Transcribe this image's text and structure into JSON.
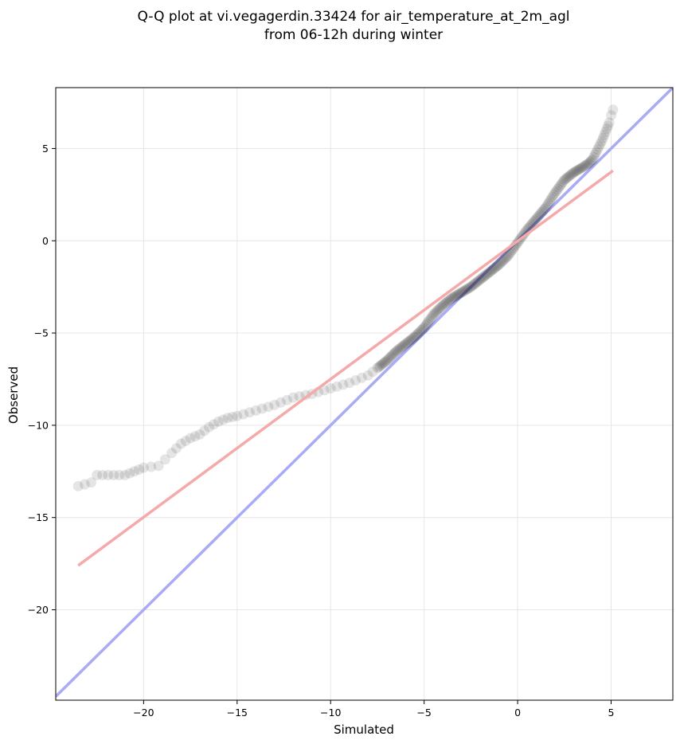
{
  "chart_data": {
    "type": "scatter",
    "title": "Q-Q plot at vi.vegagerdin.33424 for air_temperature_at_2m_agl",
    "subtitle": "from 06-12h during winter",
    "xlabel": "Simulated",
    "ylabel": "Observed",
    "xlim": [
      -24.7,
      8.3
    ],
    "ylim": [
      -24.9,
      8.3
    ],
    "x_ticks": [
      -20,
      -15,
      -10,
      -5,
      0,
      5
    ],
    "y_ticks": [
      5,
      0,
      -5,
      -10,
      -15,
      -20
    ],
    "x_tick_labels": [
      "−20",
      "−15",
      "−10",
      "−5",
      "0",
      "5"
    ],
    "y_tick_labels": [
      "5",
      "0",
      "−5",
      "−10",
      "−15",
      "−20"
    ],
    "grid": true,
    "colors": {
      "points": "#000000",
      "reference_line": "#aaaaf5",
      "fit_line": "#f5aaaa",
      "grid": "#e6e6e6"
    },
    "quantile_curve": {
      "x": [
        -23.5,
        -22.8,
        -22.5,
        -21.0,
        -20.5,
        -20.0,
        -19.2,
        -18.5,
        -18.0,
        -17.5,
        -17.0,
        -16.5,
        -16.0,
        -15.5,
        -15.0,
        -14.0,
        -13.0,
        -12.0,
        -11.0,
        -10.0,
        -9.0,
        -8.0,
        -7.5,
        -7.0,
        -6.5,
        -6.0,
        -5.5,
        -5.0,
        -4.5,
        -4.0,
        -3.5,
        -3.0,
        -2.5,
        -2.0,
        -1.5,
        -1.0,
        -0.5,
        0.0,
        0.5,
        1.0,
        1.5,
        2.0,
        2.5,
        3.0,
        3.5,
        3.8,
        4.0,
        4.2,
        4.5,
        4.7,
        4.9,
        5.0,
        5.1
      ],
      "y": [
        -13.3,
        -13.1,
        -12.7,
        -12.7,
        -12.5,
        -12.3,
        -12.2,
        -11.5,
        -11.0,
        -10.7,
        -10.5,
        -10.1,
        -9.8,
        -9.6,
        -9.5,
        -9.2,
        -8.9,
        -8.5,
        -8.3,
        -8.0,
        -7.7,
        -7.3,
        -6.9,
        -6.5,
        -6.0,
        -5.6,
        -5.2,
        -4.7,
        -4.0,
        -3.5,
        -3.1,
        -2.8,
        -2.5,
        -2.1,
        -1.7,
        -1.3,
        -0.8,
        -0.1,
        0.6,
        1.2,
        1.8,
        2.6,
        3.3,
        3.7,
        4.0,
        4.2,
        4.4,
        4.8,
        5.4,
        5.9,
        6.4,
        6.8,
        7.1
      ]
    },
    "reference_line": {
      "name": "y = x",
      "x": [
        -24.7,
        8.3
      ],
      "y": [
        -24.7,
        8.3
      ]
    },
    "fit_line": {
      "x": [
        -23.5,
        5.1
      ],
      "y": [
        -17.6,
        3.8
      ]
    }
  }
}
